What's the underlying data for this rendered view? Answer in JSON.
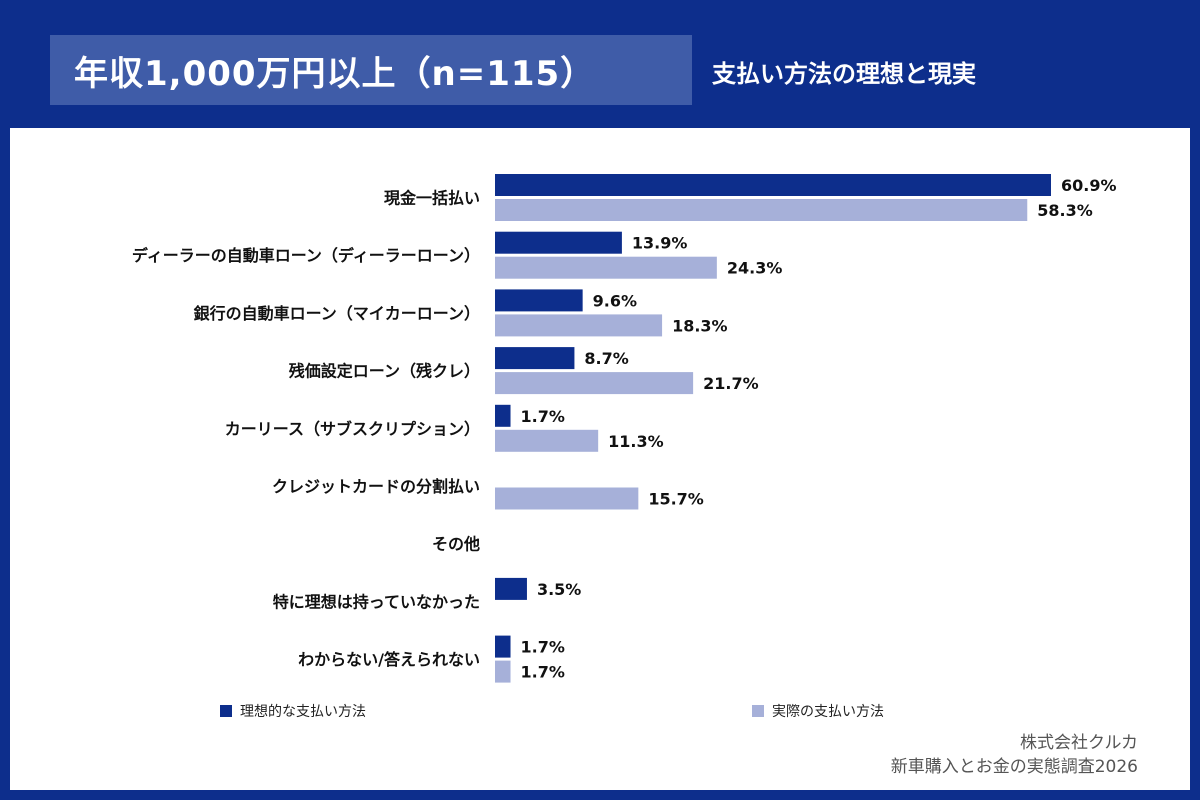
{
  "header": {
    "title": "年収1,000万円以上（n=115）",
    "subtitle": "支払い方法の理想と現実"
  },
  "colors": {
    "background": "#0d2e8c",
    "title_box": "#3f5ca8",
    "ideal": "#0d2e8c",
    "actual": "#a6b0d9"
  },
  "chart_data": {
    "type": "bar",
    "orientation": "horizontal",
    "categories": [
      "現金一括払い",
      "ディーラーの自動車ローン（ディーラーローン）",
      "銀行の自動車ローン（マイカーローン）",
      "残価設定ローン（残クレ）",
      "カーリース（サブスクリプション）",
      "クレジットカードの分割払い",
      "その他",
      "特に理想は持っていなかった",
      "わからない/答えられない"
    ],
    "series": [
      {
        "name": "理想的な支払い方法",
        "values": [
          60.9,
          13.9,
          9.6,
          8.7,
          1.7,
          null,
          null,
          3.5,
          1.7
        ],
        "labels": [
          "60.9%",
          "13.9%",
          "9.6%",
          "8.7%",
          "1.7%",
          null,
          null,
          "3.5%",
          "1.7%"
        ]
      },
      {
        "name": "実際の支払い方法",
        "values": [
          58.3,
          24.3,
          18.3,
          21.7,
          11.3,
          15.7,
          null,
          null,
          1.7
        ],
        "labels": [
          "58.3%",
          "24.3%",
          "18.3%",
          "21.7%",
          "11.3%",
          "15.7%",
          null,
          null,
          "1.7%"
        ]
      }
    ],
    "xlim": [
      0,
      61
    ],
    "grid": false,
    "legend_position": "bottom"
  },
  "legend": {
    "ideal_label": "理想的な支払い方法",
    "actual_label": "実際の支払い方法"
  },
  "footer": {
    "company": "株式会社クルカ",
    "survey": "新車購入とお金の実態調査2026"
  }
}
